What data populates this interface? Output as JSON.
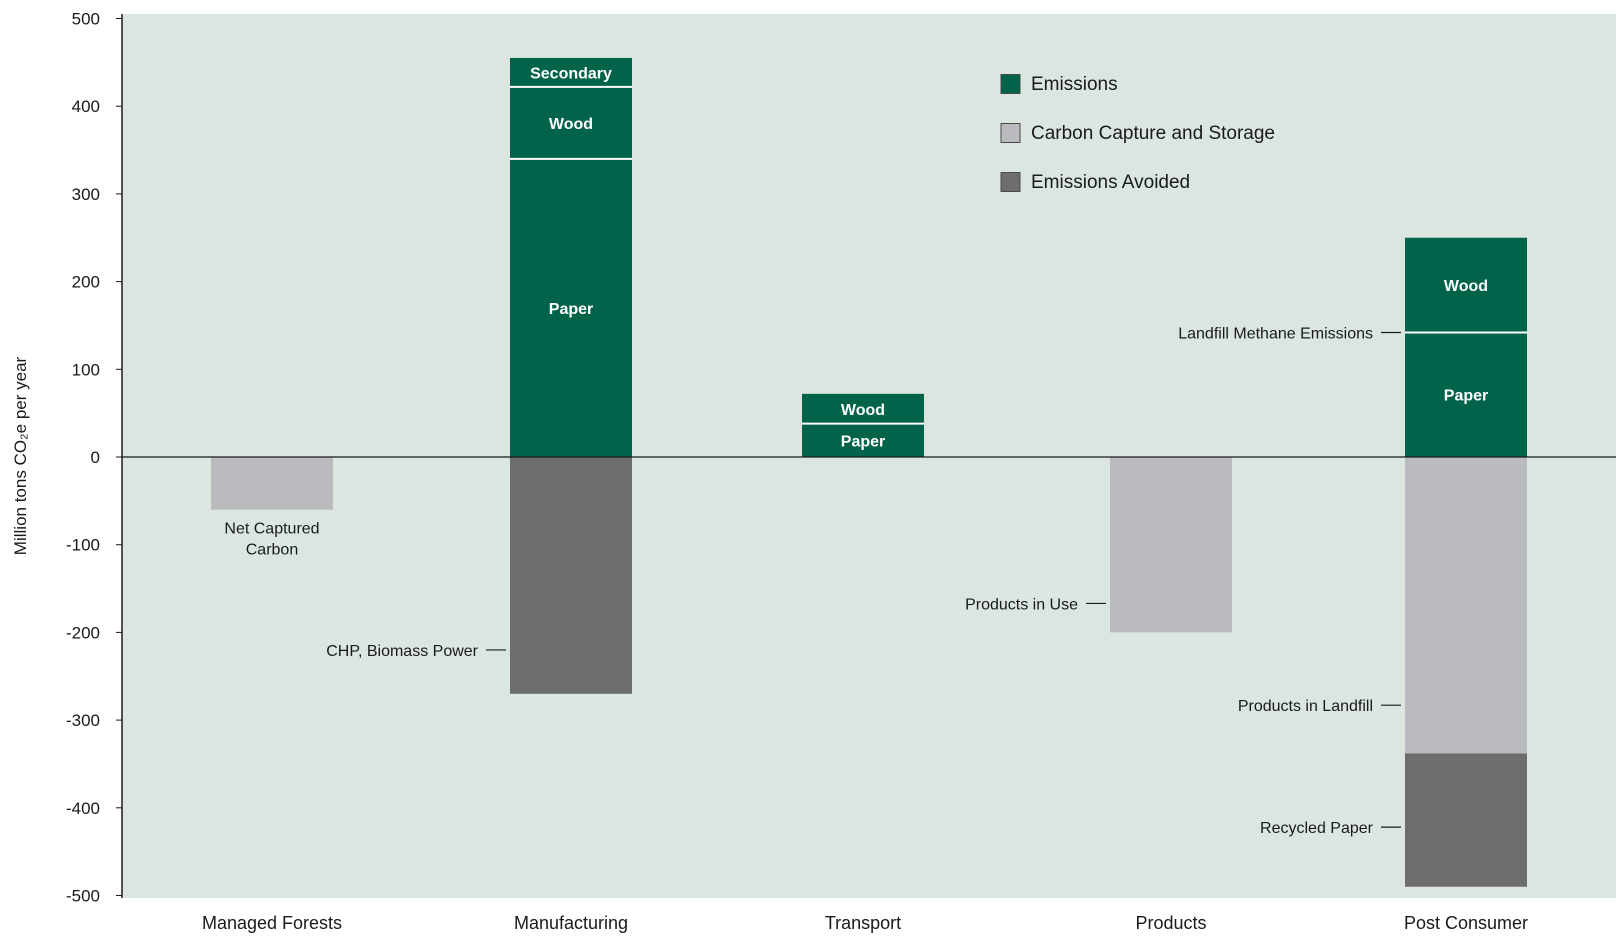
{
  "chart_data": {
    "type": "bar",
    "stacked": true,
    "ylabel": "Million tons CO₂e per year",
    "ylim": [
      -500,
      500
    ],
    "yticks": [
      "500",
      "400",
      "300",
      "200",
      "100",
      "0",
      "-100",
      "-200",
      "-300",
      "-400",
      "-500"
    ],
    "ytick_values": [
      500,
      400,
      300,
      200,
      100,
      0,
      -100,
      -200,
      -300,
      -400,
      -500
    ],
    "categories": [
      "Managed Forests",
      "Manufacturing",
      "Transport",
      "Products",
      "Post Consumer"
    ],
    "grid": false,
    "legend_position": "top-right",
    "legend": [
      {
        "name": "Emissions",
        "color": "#00634a"
      },
      {
        "name": "Carbon Capture and Storage",
        "color": "#babbbe"
      },
      {
        "name": "Emissions Avoided",
        "color": "#6d6d6f"
      }
    ],
    "segments": [
      {
        "category": "Managed Forests",
        "type": "Carbon Capture and Storage",
        "start": 0,
        "end": -60,
        "label": "",
        "annotation": "Net Captured\nCarbon"
      },
      {
        "category": "Manufacturing",
        "type": "Emissions",
        "start": 0,
        "end": 340,
        "label": "Paper",
        "annotation": ""
      },
      {
        "category": "Manufacturing",
        "type": "Emissions",
        "start": 340,
        "end": 422,
        "label": "Wood",
        "annotation": ""
      },
      {
        "category": "Manufacturing",
        "type": "Emissions",
        "start": 422,
        "end": 455,
        "label": "Secondary",
        "annotation": ""
      },
      {
        "category": "Manufacturing",
        "type": "Emissions Avoided",
        "start": 0,
        "end": -270,
        "label": "",
        "annotation": "CHP, Biomass Power"
      },
      {
        "category": "Transport",
        "type": "Emissions",
        "start": 0,
        "end": 38,
        "label": "Paper",
        "annotation": ""
      },
      {
        "category": "Transport",
        "type": "Emissions",
        "start": 38,
        "end": 72,
        "label": "Wood",
        "annotation": ""
      },
      {
        "category": "Products",
        "type": "Carbon Capture and Storage",
        "start": 0,
        "end": -200,
        "label": "",
        "annotation": "Products in Use"
      },
      {
        "category": "Post Consumer",
        "type": "Emissions",
        "start": 0,
        "end": 142,
        "label": "Paper",
        "annotation": "Landfill Methane Emissions"
      },
      {
        "category": "Post Consumer",
        "type": "Emissions",
        "start": 142,
        "end": 250,
        "label": "Wood",
        "annotation": ""
      },
      {
        "category": "Post Consumer",
        "type": "Carbon Capture and Storage",
        "start": 0,
        "end": -338,
        "label": "",
        "annotation": "Products in Landfill"
      },
      {
        "category": "Post Consumer",
        "type": "Emissions Avoided",
        "start": -338,
        "end": -490,
        "label": "",
        "annotation": "Recycled Paper"
      }
    ]
  },
  "colors": {
    "plot_background": "#dbe6e1",
    "divider": "#ffffff",
    "axis": "#1a1a1a"
  }
}
